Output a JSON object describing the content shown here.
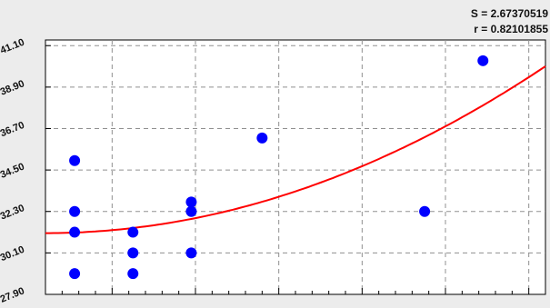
{
  "stats": {
    "s_text": "S = 2.67370519",
    "r_text": "r = 0.82101855"
  },
  "colors": {
    "background": "#ececec",
    "plot_background": "#ffffff",
    "points": "#0000ff",
    "curve": "#ff0000",
    "grid": "#909090",
    "axis": "#000000"
  },
  "chart_data": {
    "type": "scatter",
    "title": "",
    "xlabel": "",
    "ylabel": "",
    "grid": true,
    "xlim": [
      0,
      6
    ],
    "ylim": [
      27.9,
      41.4
    ],
    "y_ticks": [
      27.9,
      30.1,
      32.3,
      34.5,
      36.7,
      38.9,
      41.1
    ],
    "y_tick_labels": [
      "27.90",
      "30.10",
      "32.30",
      "34.50",
      "36.70",
      "38.90",
      "41.10"
    ],
    "x_gridlines": [
      0.8,
      1.8,
      2.8,
      3.8,
      4.8,
      5.8
    ],
    "series": [
      {
        "points": [
          {
            "x": 0.35,
            "y": 35.0
          },
          {
            "x": 0.35,
            "y": 32.3
          },
          {
            "x": 0.35,
            "y": 31.2
          },
          {
            "x": 0.35,
            "y": 29.0
          },
          {
            "x": 1.05,
            "y": 31.2
          },
          {
            "x": 1.05,
            "y": 30.1
          },
          {
            "x": 1.05,
            "y": 29.0
          },
          {
            "x": 1.75,
            "y": 32.8
          },
          {
            "x": 1.75,
            "y": 32.3
          },
          {
            "x": 1.75,
            "y": 30.1
          },
          {
            "x": 2.6,
            "y": 36.2
          },
          {
            "x": 4.55,
            "y": 32.3
          },
          {
            "x": 5.25,
            "y": 40.3
          }
        ]
      }
    ],
    "fit_curve": {
      "type": "quadratic",
      "a": 31.15,
      "b": 0.0,
      "c": 0.246
    }
  }
}
